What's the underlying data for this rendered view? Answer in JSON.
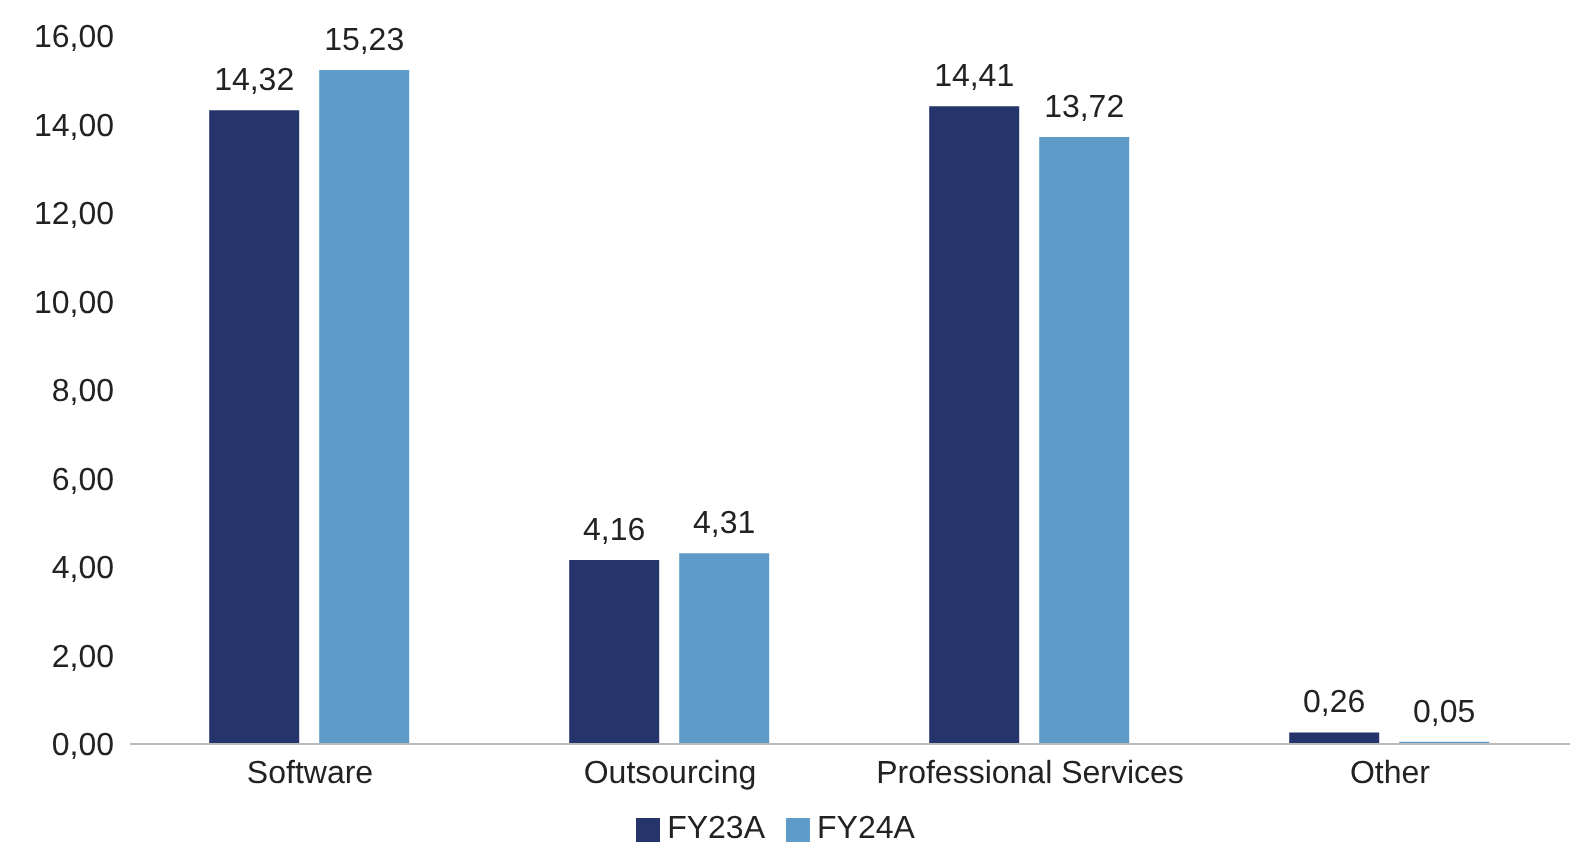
{
  "chart_data": {
    "type": "bar",
    "categories": [
      "Software",
      "Outsourcing",
      "Professional Services",
      "Other"
    ],
    "series": [
      {
        "name": "FY23A",
        "color": "#25346a",
        "values": [
          14.32,
          4.16,
          14.41,
          0.26
        ],
        "value_labels": [
          "14,32",
          "4,16",
          "14,41",
          "0,26"
        ]
      },
      {
        "name": "FY24A",
        "color": "#5f9bc8",
        "values": [
          15.23,
          4.31,
          13.72,
          0.05
        ],
        "value_labels": [
          "15,23",
          "4,31",
          "13,72",
          "0,05"
        ]
      }
    ],
    "ylim": [
      0,
      16
    ],
    "yticks": [
      {
        "value": 0,
        "label": "0,00"
      },
      {
        "value": 2,
        "label": "2,00"
      },
      {
        "value": 4,
        "label": "4,00"
      },
      {
        "value": 6,
        "label": "6,00"
      },
      {
        "value": 8,
        "label": "8,00"
      },
      {
        "value": 10,
        "label": "10,00"
      },
      {
        "value": 12,
        "label": "12,00"
      },
      {
        "value": 14,
        "label": "14,00"
      },
      {
        "value": 16,
        "label": "16,00"
      }
    ],
    "grid": false,
    "legend": "bottom"
  }
}
